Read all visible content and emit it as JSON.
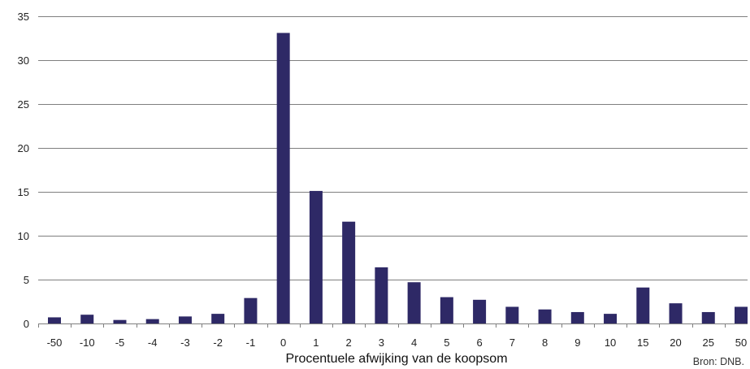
{
  "chart_data": {
    "type": "bar",
    "title": "",
    "xlabel": "Procentuele afwijking van de koopsom",
    "ylabel": "",
    "categories": [
      "-50",
      "-10",
      "-5",
      "-4",
      "-3",
      "-2",
      "-1",
      "0",
      "1",
      "2",
      "3",
      "4",
      "5",
      "6",
      "7",
      "8",
      "9",
      "10",
      "15",
      "20",
      "25",
      "50"
    ],
    "values": [
      0.7,
      1.0,
      0.4,
      0.5,
      0.8,
      1.1,
      2.9,
      33.1,
      15.1,
      11.6,
      6.4,
      4.7,
      3.0,
      2.7,
      1.9,
      1.6,
      1.3,
      1.1,
      4.1,
      2.3,
      1.3,
      1.9
    ],
    "ylim": [
      0,
      35
    ],
    "yticks": [
      0,
      5,
      10,
      15,
      20,
      25,
      30,
      35
    ],
    "grid": true,
    "legend": "none",
    "bar_color": "#2e2966",
    "source": "Bron: DNB."
  }
}
